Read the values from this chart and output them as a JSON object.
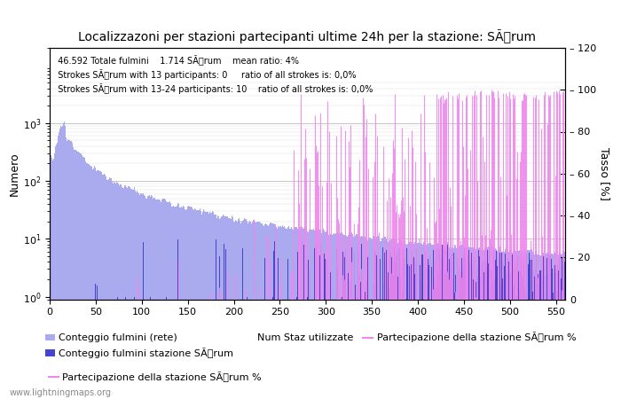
{
  "title": "Localizzazoni per stazioni partecipanti ultime 24h per la stazione: SÃrum",
  "ylabel_left": "Numero",
  "ylabel_right": "Tasso [%]",
  "ann1": "  46.592 Totale fulmini    1.714 SÃrum    mean ratio: 4%",
  "ann2": "  Strokes SÃrum with 13 participants: 0     ratio of all strokes is: 0,0%",
  "ann3": "  Strokes SÃrum with 13-24 participants: 10    ratio of all strokes is: 0,0%",
  "watermark": "www.lightningmaps.org",
  "leg1_label": "Conteggio fulmini (rete)",
  "leg1_color": "#aaaaee",
  "leg2_label": "Conteggio fulmini stazione SÃrum",
  "leg2_color": "#4444cc",
  "leg3_label": "Num Staz utilizzate",
  "leg4_label": "Partecipazione della stazione SÃrum %",
  "leg4_color": "#ee88ee",
  "color_grid": "#bbbbbb",
  "bg_color": "#ffffff",
  "xmax": 560,
  "right_yticks": [
    0,
    20,
    40,
    60,
    80,
    100,
    120
  ]
}
